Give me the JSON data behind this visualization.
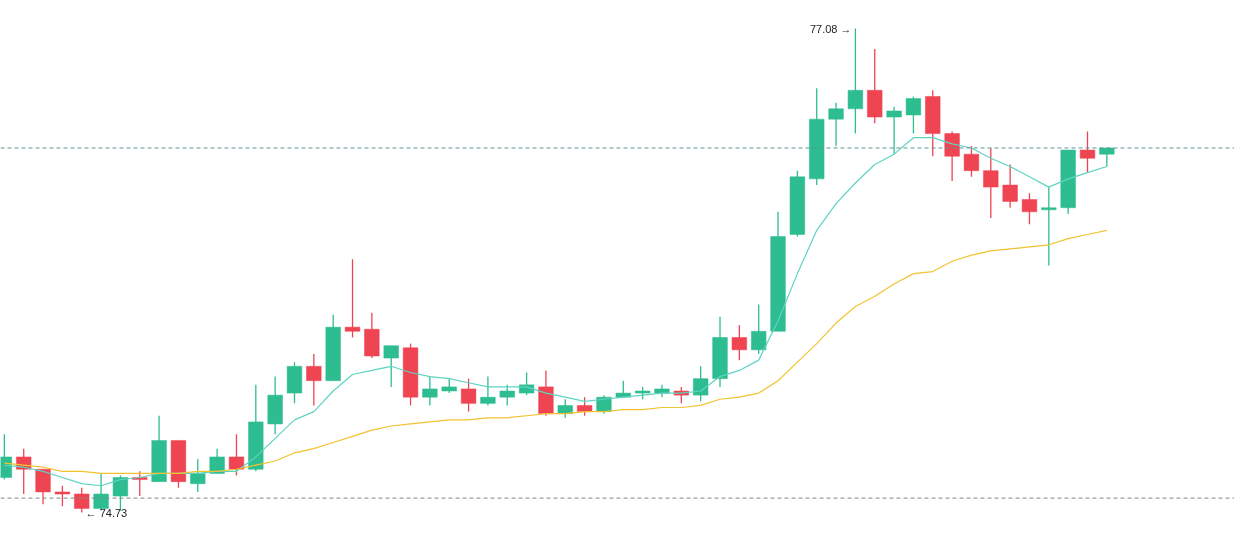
{
  "chart_data": {
    "type": "candlestick",
    "categories": [
      null,
      null,
      null,
      null,
      null,
      null,
      null,
      null,
      null,
      null,
      null,
      null,
      null,
      null,
      null,
      null,
      null,
      null,
      null,
      null,
      null,
      null,
      null,
      null,
      null,
      null,
      null,
      null,
      null,
      null,
      null,
      null,
      null,
      null,
      null,
      null,
      null,
      null,
      null,
      null,
      null,
      null,
      null,
      null,
      null,
      null,
      null,
      null,
      null,
      null,
      null,
      null,
      null,
      null,
      null,
      null,
      null,
      null
    ],
    "ohlc": [
      [
        74.9,
        75.11,
        74.89,
        75.0
      ],
      [
        75.0,
        75.04,
        74.82,
        74.94
      ],
      [
        74.94,
        74.94,
        74.77,
        74.83
      ],
      [
        74.83,
        74.86,
        74.76,
        74.82
      ],
      [
        74.82,
        74.85,
        74.73,
        74.75
      ],
      [
        74.75,
        74.92,
        74.74,
        74.82
      ],
      [
        74.81,
        74.91,
        74.74,
        74.9
      ],
      [
        74.9,
        74.93,
        74.81,
        74.89
      ],
      [
        74.88,
        75.2,
        74.88,
        75.08
      ],
      [
        75.08,
        75.08,
        74.85,
        74.88
      ],
      [
        74.87,
        74.99,
        74.83,
        74.92
      ],
      [
        74.92,
        75.04,
        74.92,
        75.0
      ],
      [
        75.0,
        75.11,
        74.91,
        74.94
      ],
      [
        74.94,
        75.35,
        74.93,
        75.17
      ],
      [
        75.16,
        75.39,
        75.11,
        75.3
      ],
      [
        75.31,
        75.46,
        75.26,
        75.44
      ],
      [
        75.44,
        75.5,
        75.25,
        75.37
      ],
      [
        75.37,
        75.69,
        75.37,
        75.63
      ],
      [
        75.63,
        75.96,
        75.58,
        75.61
      ],
      [
        75.62,
        75.7,
        75.48,
        75.49
      ],
      [
        75.48,
        75.54,
        75.34,
        75.54
      ],
      [
        75.53,
        75.55,
        75.25,
        75.29
      ],
      [
        75.29,
        75.39,
        75.25,
        75.33
      ],
      [
        75.32,
        75.38,
        75.31,
        75.34
      ],
      [
        75.33,
        75.38,
        75.22,
        75.26
      ],
      [
        75.26,
        75.39,
        75.25,
        75.29
      ],
      [
        75.29,
        75.35,
        75.25,
        75.32
      ],
      [
        75.31,
        75.41,
        75.3,
        75.35
      ],
      [
        75.34,
        75.42,
        75.2,
        75.21
      ],
      [
        75.21,
        75.28,
        75.19,
        75.25
      ],
      [
        75.25,
        75.29,
        75.2,
        75.22
      ],
      [
        75.22,
        75.3,
        75.21,
        75.29
      ],
      [
        75.29,
        75.37,
        75.29,
        75.31
      ],
      [
        75.31,
        75.34,
        75.28,
        75.32
      ],
      [
        75.31,
        75.35,
        75.29,
        75.33
      ],
      [
        75.32,
        75.34,
        75.26,
        75.3
      ],
      [
        75.3,
        75.44,
        75.27,
        75.38
      ],
      [
        75.38,
        75.68,
        75.34,
        75.58
      ],
      [
        75.58,
        75.64,
        75.47,
        75.52
      ],
      [
        75.52,
        75.74,
        75.5,
        75.61
      ],
      [
        75.61,
        76.19,
        75.61,
        76.07
      ],
      [
        76.08,
        76.39,
        76.07,
        76.36
      ],
      [
        76.35,
        76.79,
        76.32,
        76.64
      ],
      [
        76.64,
        76.72,
        76.51,
        76.69
      ],
      [
        76.69,
        77.08,
        76.57,
        76.78
      ],
      [
        76.78,
        76.98,
        76.62,
        76.65
      ],
      [
        76.65,
        76.7,
        76.47,
        76.68
      ],
      [
        76.66,
        76.75,
        76.57,
        76.74
      ],
      [
        76.75,
        76.78,
        76.46,
        76.57
      ],
      [
        76.57,
        76.58,
        76.34,
        76.46
      ],
      [
        76.47,
        76.51,
        76.36,
        76.39
      ],
      [
        76.39,
        76.5,
        76.16,
        76.31
      ],
      [
        76.32,
        76.42,
        76.21,
        76.24
      ],
      [
        76.25,
        76.28,
        76.13,
        76.19
      ],
      [
        76.2,
        76.31,
        75.93,
        76.21
      ],
      [
        76.21,
        76.49,
        76.18,
        76.49
      ],
      [
        76.49,
        76.58,
        76.38,
        76.45
      ],
      [
        76.47,
        76.5,
        76.41,
        76.5
      ]
    ],
    "colors": [
      "#2ebd91",
      "#ef4452",
      "#ef4452",
      "#ef4452",
      "#ef4452",
      "#2ebd91",
      "#2ebd91",
      "#ef4452",
      "#2ebd91",
      "#ef4452",
      "#2ebd91",
      "#2ebd91",
      "#ef4452",
      "#2ebd91",
      "#2ebd91",
      "#2ebd91",
      "#ef4452",
      "#2ebd91",
      "#ef4452",
      "#ef4452",
      "#2ebd91",
      "#ef4452",
      "#2ebd91",
      "#2ebd91",
      "#ef4452",
      "#2ebd91",
      "#2ebd91",
      "#2ebd91",
      "#ef4452",
      "#2ebd91",
      "#ef4452",
      "#2ebd91",
      "#2ebd91",
      "#2ebd91",
      "#2ebd91",
      "#ef4452",
      "#2ebd91",
      "#2ebd91",
      "#ef4452",
      "#2ebd91",
      "#2ebd91",
      "#2ebd91",
      "#2ebd91",
      "#2ebd91",
      "#2ebd91",
      "#ef4452",
      "#2ebd91",
      "#2ebd91",
      "#ef4452",
      "#ef4452",
      "#ef4452",
      "#ef4452",
      "#ef4452",
      "#ef4452",
      "#2ebd91",
      "#2ebd91",
      "#ef4452",
      "#2ebd91"
    ],
    "series": [
      {
        "type": "line",
        "color": "#5fd3c3",
        "values": [
          74.96,
          74.95,
          74.93,
          74.9,
          74.87,
          74.86,
          74.89,
          74.9,
          74.92,
          74.92,
          74.92,
          74.93,
          74.93,
          75.0,
          75.09,
          75.18,
          75.22,
          75.32,
          75.4,
          75.42,
          75.44,
          75.41,
          75.39,
          75.38,
          75.36,
          75.34,
          75.34,
          75.34,
          75.31,
          75.29,
          75.27,
          75.28,
          75.29,
          75.3,
          75.31,
          75.31,
          75.32,
          75.39,
          75.42,
          75.47,
          75.66,
          75.89,
          76.1,
          76.23,
          76.33,
          76.42,
          76.47,
          76.55,
          76.55,
          76.52,
          76.5,
          76.45,
          76.41,
          76.36,
          76.31,
          76.35,
          76.38,
          76.41
        ]
      },
      {
        "type": "line",
        "color": "#f2c230",
        "values": [
          74.97,
          74.96,
          74.95,
          74.93,
          74.93,
          74.92,
          74.92,
          74.92,
          74.92,
          74.92,
          74.93,
          74.93,
          74.94,
          74.96,
          74.98,
          75.02,
          75.04,
          75.07,
          75.1,
          75.13,
          75.15,
          75.16,
          75.17,
          75.18,
          75.18,
          75.19,
          75.19,
          75.2,
          75.21,
          75.21,
          75.22,
          75.22,
          75.23,
          75.23,
          75.24,
          75.24,
          75.25,
          75.28,
          75.29,
          75.31,
          75.37,
          75.46,
          75.55,
          75.65,
          75.73,
          75.78,
          75.84,
          75.89,
          75.9,
          75.95,
          75.98,
          76.0,
          76.01,
          76.02,
          76.03,
          76.06,
          76.08,
          76.1
        ]
      }
    ],
    "ref_lines": [
      {
        "axis": "y",
        "value": 76.5,
        "color": "#5a9595",
        "line_style": "dashed"
      },
      {
        "axis": "y",
        "value": 74.8,
        "color": "#7a8a8a",
        "line_style": "dashed"
      }
    ],
    "annotations": [
      "77.08 →",
      "← 74.73"
    ],
    "grid": false,
    "tick_labels": false,
    "line_style": "solid",
    "marker": "none"
  }
}
